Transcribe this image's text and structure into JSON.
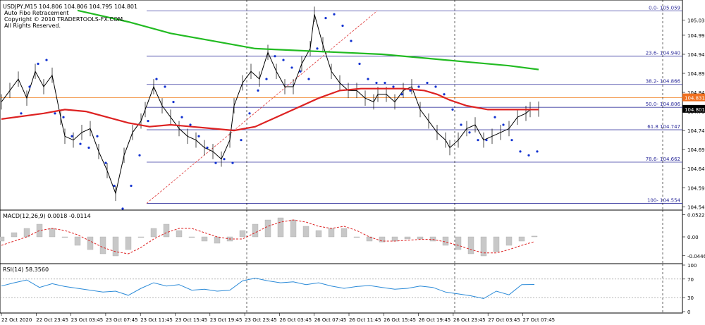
{
  "header": {
    "title_line": "USDJPY,M15  104.806 104.806 104.795 104.801",
    "indicator_name": "Auto Fibo Retracement",
    "copyright": "Copyright © 2010 TRADERTOOLS-FX.COM.",
    "rights": "All Rights Reserved."
  },
  "panes": {
    "macd_label": "MACD(12,26,9) 0.0018 -0.0114",
    "rsi_label": "RSI(14) 58.3560"
  },
  "chart_data": [
    {
      "type": "line",
      "pane": "price",
      "symbol": "USDJPY",
      "timeframe": "M15",
      "ylim": [
        104.54,
        105.08
      ],
      "y_ticks": [
        "105.035",
        "104.995",
        "104.945",
        "104.895",
        "104.845",
        "104.795",
        "104.745",
        "104.695",
        "104.645",
        "104.595",
        "104.545"
      ],
      "current_price": "104.801",
      "ma_marker": "104.831",
      "x_ticks": [
        "22 Oct 2020",
        "22 Oct 23:45",
        "23 Oct 03:45",
        "23 Oct 07:45",
        "23 Oct 11:45",
        "23 Oct 15:45",
        "23 Oct 19:45",
        "23 Oct 23:45",
        "26 Oct 03:45",
        "26 Oct 07:45",
        "26 Oct 11:45",
        "26 Oct 15:45",
        "26 Oct 19:45",
        "26 Oct 23:45",
        "27 Oct 03:45",
        "27 Oct 07:45"
      ],
      "fibo_levels": [
        {
          "label": "0.0- 105.059",
          "value": 105.059
        },
        {
          "label": "23.6- 104.940",
          "value": 104.94
        },
        {
          "label": "38.2- 104.866",
          "value": 104.866
        },
        {
          "label": "50.0- 104.806",
          "value": 104.806
        },
        {
          "label": "61.8 104.747",
          "value": 104.747
        },
        {
          "label": "78.6- 104.662",
          "value": 104.662
        },
        {
          "label": "100- 104.554",
          "value": 104.554
        }
      ],
      "series": [
        {
          "role": "price_close",
          "x": [
            0,
            2,
            4,
            6,
            8,
            10,
            12,
            14,
            15,
            17,
            19,
            21,
            23,
            25,
            27,
            29,
            31,
            33,
            34,
            36,
            38,
            40,
            42,
            44,
            46,
            48,
            50,
            52,
            54,
            55,
            57,
            59,
            61,
            63,
            65,
            67,
            69,
            71,
            73,
            74,
            76,
            78,
            80,
            82,
            84,
            86,
            88,
            89,
            91,
            93,
            95,
            97,
            99,
            101,
            103,
            105,
            106,
            108,
            110,
            112,
            114,
            116,
            118,
            120,
            122,
            124,
            125,
            127
          ],
          "values": [
            104.82,
            104.85,
            104.88,
            104.83,
            104.9,
            104.86,
            104.89,
            104.78,
            104.73,
            104.72,
            104.74,
            104.75,
            104.69,
            104.64,
            104.58,
            104.68,
            104.74,
            104.77,
            104.8,
            104.86,
            104.81,
            104.78,
            104.75,
            104.73,
            104.72,
            104.7,
            104.69,
            104.67,
            104.72,
            104.81,
            104.87,
            104.9,
            104.88,
            104.95,
            104.9,
            104.86,
            104.86,
            104.92,
            104.96,
            105.05,
            104.97,
            104.9,
            104.87,
            104.85,
            104.85,
            104.83,
            104.82,
            104.84,
            104.84,
            104.82,
            104.85,
            104.86,
            104.8,
            104.77,
            104.74,
            104.72,
            104.7,
            104.72,
            104.75,
            104.76,
            104.72,
            104.73,
            104.74,
            104.75,
            104.78,
            104.79,
            104.8,
            104.801
          ]
        },
        {
          "role": "moving_average_green",
          "color": "#22bb22",
          "x": [
            18,
            30,
            40,
            50,
            60,
            70,
            80,
            90,
            100,
            110,
            120,
            127
          ],
          "values": [
            105.06,
            105.03,
            105.0,
            104.98,
            104.96,
            104.955,
            104.95,
            104.945,
            104.935,
            104.925,
            104.915,
            104.905
          ]
        },
        {
          "role": "moving_average_red",
          "color": "#dd2222",
          "x": [
            0,
            10,
            15,
            20,
            25,
            30,
            35,
            40,
            45,
            50,
            55,
            60,
            65,
            70,
            75,
            80,
            85,
            90,
            95,
            100,
            103,
            106,
            110,
            115,
            120,
            125,
            127
          ],
          "values": [
            104.775,
            104.79,
            104.8,
            104.795,
            104.78,
            104.765,
            104.755,
            104.76,
            104.755,
            104.75,
            104.745,
            104.755,
            104.78,
            104.805,
            104.83,
            104.85,
            104.855,
            104.855,
            104.855,
            104.85,
            104.84,
            104.825,
            104.81,
            104.8,
            104.8,
            104.8,
            104.8
          ]
        },
        {
          "role": "parabolic_sar",
          "color": "#1030d0",
          "x": [
            4,
            6,
            8,
            10,
            12,
            14,
            16,
            18,
            20,
            22,
            24,
            26,
            28,
            30,
            32,
            34,
            36,
            38,
            40,
            42,
            44,
            46,
            48,
            50,
            52,
            54,
            56,
            58,
            60,
            62,
            64,
            66,
            68,
            70,
            72,
            74,
            76,
            78,
            80,
            82,
            84,
            86,
            88,
            90,
            92,
            94,
            96,
            98,
            100,
            102,
            104,
            106,
            108,
            110,
            112,
            114,
            116,
            118,
            120,
            122,
            124,
            126
          ],
          "values": [
            104.79,
            104.86,
            104.92,
            104.93,
            104.79,
            104.78,
            104.73,
            104.71,
            104.7,
            104.73,
            104.66,
            104.6,
            104.54,
            104.6,
            104.68,
            104.77,
            104.88,
            104.86,
            104.82,
            104.78,
            104.76,
            104.73,
            104.7,
            104.66,
            104.67,
            104.66,
            104.72,
            104.79,
            104.85,
            104.88,
            104.94,
            104.93,
            104.91,
            104.9,
            104.88,
            104.96,
            105.04,
            105.05,
            105.02,
            104.98,
            104.92,
            104.88,
            104.87,
            104.87,
            104.86,
            104.84,
            104.85,
            104.86,
            104.87,
            104.86,
            104.84,
            104.8,
            104.76,
            104.74,
            104.72,
            104.72,
            104.78,
            104.76,
            104.72,
            104.69,
            104.68,
            104.69
          ]
        }
      ]
    },
    {
      "type": "bar",
      "pane": "macd",
      "name": "MACD(12,26,9)",
      "ylim": [
        -0.06,
        0.06
      ],
      "y_ticks": [
        "0.0522",
        "0.00",
        "-0.0446"
      ],
      "x": [
        0,
        3,
        6,
        9,
        12,
        15,
        18,
        21,
        24,
        27,
        30,
        33,
        36,
        39,
        42,
        45,
        48,
        51,
        54,
        57,
        60,
        63,
        66,
        69,
        72,
        75,
        78,
        81,
        84,
        87,
        90,
        93,
        96,
        99,
        102,
        105,
        108,
        111,
        114,
        117,
        120,
        123,
        126
      ],
      "values": [
        -0.01,
        0.01,
        0.02,
        0.03,
        0.02,
        0.0,
        -0.02,
        -0.03,
        -0.04,
        -0.045,
        -0.03,
        0.0,
        0.02,
        0.03,
        0.015,
        0.0,
        -0.01,
        -0.015,
        -0.01,
        0.015,
        0.03,
        0.04,
        0.045,
        0.04,
        0.025,
        0.015,
        0.02,
        0.02,
        0.0,
        -0.01,
        -0.012,
        -0.01,
        -0.005,
        -0.005,
        -0.01,
        -0.02,
        -0.03,
        -0.04,
        -0.045,
        -0.035,
        -0.02,
        -0.01,
        0.0018
      ],
      "signal": [
        -0.02,
        -0.01,
        0.0,
        0.015,
        0.02,
        0.015,
        0.005,
        -0.01,
        -0.025,
        -0.035,
        -0.04,
        -0.025,
        -0.005,
        0.01,
        0.02,
        0.02,
        0.01,
        0.0,
        -0.005,
        -0.005,
        0.01,
        0.025,
        0.035,
        0.04,
        0.035,
        0.025,
        0.02,
        0.025,
        0.015,
        0.0,
        -0.01,
        -0.01,
        -0.008,
        -0.006,
        -0.006,
        -0.012,
        -0.02,
        -0.03,
        -0.038,
        -0.038,
        -0.03,
        -0.02,
        -0.0114
      ]
    },
    {
      "type": "line",
      "pane": "rsi",
      "name": "RSI(14)",
      "ylim": [
        0,
        100
      ],
      "y_ticks": [
        "100",
        "70",
        "30",
        "0"
      ],
      "x": [
        0,
        3,
        6,
        9,
        12,
        15,
        18,
        21,
        24,
        27,
        30,
        33,
        36,
        39,
        42,
        45,
        48,
        51,
        54,
        57,
        60,
        63,
        66,
        69,
        72,
        75,
        78,
        81,
        84,
        87,
        90,
        93,
        96,
        99,
        102,
        105,
        108,
        111,
        114,
        117,
        120,
        123,
        126
      ],
      "values": [
        55,
        62,
        68,
        52,
        60,
        54,
        50,
        46,
        42,
        44,
        35,
        50,
        62,
        55,
        58,
        46,
        48,
        44,
        46,
        66,
        72,
        66,
        62,
        64,
        58,
        62,
        55,
        50,
        54,
        56,
        52,
        48,
        50,
        55,
        52,
        42,
        38,
        34,
        28,
        44,
        36,
        58,
        58.356
      ]
    }
  ]
}
